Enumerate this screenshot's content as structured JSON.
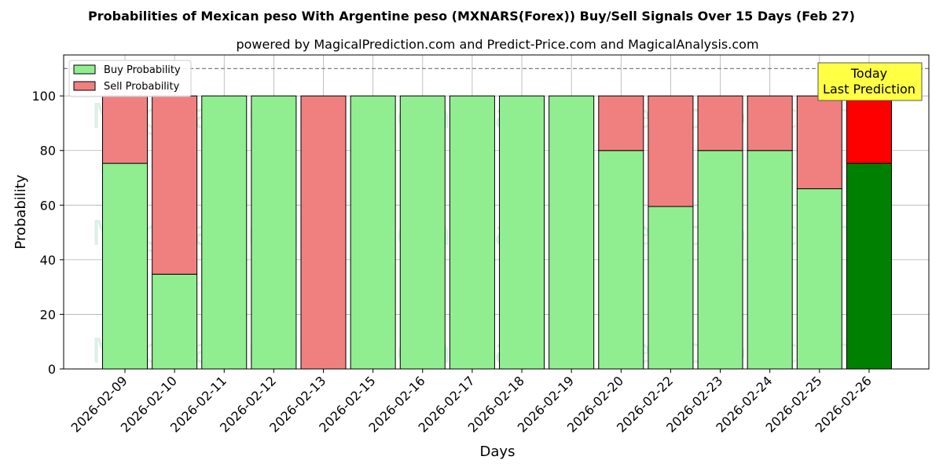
{
  "chart_data": {
    "type": "bar",
    "title": "Probabilities of Mexican peso With Argentine peso (MXNARS(Forex)) Buy/Sell Signals Over 15 Days (Feb 27)",
    "subtitle": "powered by MagicalPrediction.com and Predict-Price.com and MagicalAnalysis.com",
    "xlabel": "Days",
    "ylabel": "Probability",
    "ylim": [
      0,
      115
    ],
    "yticks": [
      0,
      20,
      40,
      60,
      80,
      100
    ],
    "grid": true,
    "stacked": true,
    "reference_line": 110,
    "legend_position": "top-left",
    "categories": [
      "2026-02-09",
      "2026-02-10",
      "2026-02-11",
      "2026-02-12",
      "2026-02-13",
      "2026-02-15",
      "2026-02-16",
      "2026-02-17",
      "2026-02-18",
      "2026-02-19",
      "2026-02-20",
      "2026-02-22",
      "2026-02-23",
      "2026-02-24",
      "2026-02-25",
      "2026-02-26"
    ],
    "series": [
      {
        "name": "Buy Probability",
        "color": "#90ee90",
        "highlight_color": "#008000",
        "values": [
          75.3,
          34.7,
          100,
          100,
          0,
          100,
          100,
          100,
          100,
          100,
          80,
          59.5,
          80,
          80,
          66,
          75.3
        ]
      },
      {
        "name": "Sell Probability",
        "color": "#f08080",
        "highlight_color": "#ff0000",
        "values": [
          24.7,
          65.3,
          0,
          0,
          100,
          0,
          0,
          0,
          0,
          0,
          20,
          40.5,
          20,
          20,
          34,
          24.7
        ]
      }
    ],
    "highlight_index": 15,
    "annotation": {
      "lines": [
        "Today",
        "Last Prediction"
      ],
      "color": "#ffff44"
    },
    "watermarks": [
      "MagicalAnalysis.com",
      "MagicalPrediction.com"
    ]
  }
}
